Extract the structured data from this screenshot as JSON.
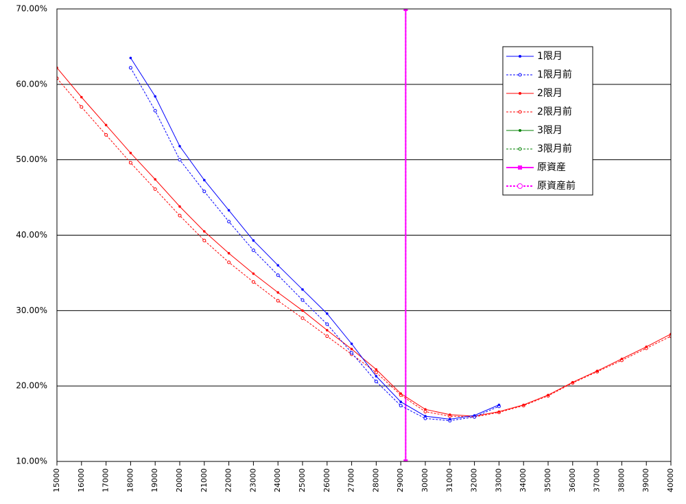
{
  "chart_data": {
    "type": "line",
    "xlim": [
      15000,
      40000
    ],
    "xticks": [
      15000,
      16000,
      17000,
      18000,
      19000,
      20000,
      21000,
      22000,
      23000,
      24000,
      25000,
      26000,
      27000,
      28000,
      29000,
      30000,
      31000,
      32000,
      33000,
      34000,
      35000,
      36000,
      37000,
      38000,
      39000,
      40000
    ],
    "ylim": [
      10,
      70
    ],
    "yticks": [
      {
        "value": 10,
        "label": "10.00%"
      },
      {
        "value": 20,
        "label": "20.00%"
      },
      {
        "value": 30,
        "label": "30.00%"
      },
      {
        "value": 40,
        "label": "40.00%"
      },
      {
        "value": 50,
        "label": "50.00%"
      },
      {
        "value": 60,
        "label": "60.00%"
      },
      {
        "value": 70,
        "label": "70.00%"
      }
    ],
    "grid": true,
    "legend": "top-right",
    "series": [
      {
        "name": "1限月",
        "color": "#0000ff",
        "dash": false,
        "marker": "filled",
        "x": [
          18000,
          19000,
          20000,
          21000,
          22000,
          23000,
          24000,
          25000,
          26000,
          27000,
          28000,
          29000,
          30000,
          31000,
          32000,
          33000
        ],
        "values": [
          63.5,
          58.4,
          51.8,
          47.3,
          43.3,
          39.3,
          36.0,
          32.8,
          29.6,
          25.6,
          21.3,
          17.9,
          16.0,
          15.6,
          16.1,
          17.5
        ]
      },
      {
        "name": "1限月前",
        "color": "#0000ff",
        "dash": true,
        "marker": "open",
        "x": [
          18000,
          19000,
          20000,
          21000,
          22000,
          23000,
          24000,
          25000,
          26000,
          27000,
          28000,
          29000,
          30000,
          31000,
          32000,
          33000
        ],
        "values": [
          62.2,
          56.5,
          50.0,
          45.8,
          41.8,
          38.0,
          34.7,
          31.4,
          28.2,
          24.4,
          20.6,
          17.4,
          15.7,
          15.4,
          15.9,
          17.3
        ]
      },
      {
        "name": "2限月",
        "color": "#ff0000",
        "dash": false,
        "marker": "filled",
        "x": [
          15000,
          16000,
          17000,
          18000,
          19000,
          20000,
          21000,
          22000,
          23000,
          24000,
          25000,
          26000,
          27000,
          28000,
          29000,
          30000,
          31000,
          32000,
          33000,
          34000,
          35000,
          36000,
          37000,
          38000,
          39000,
          40000
        ],
        "values": [
          62.2,
          58.3,
          54.6,
          50.9,
          47.4,
          43.8,
          40.5,
          37.6,
          34.9,
          32.4,
          30.0,
          27.4,
          24.9,
          22.2,
          19.0,
          16.9,
          16.2,
          16.0,
          16.6,
          17.5,
          18.8,
          20.5,
          22.0,
          23.6,
          25.2,
          26.9
        ]
      },
      {
        "name": "2限月前",
        "color": "#ff0000",
        "dash": true,
        "marker": "open",
        "x": [
          15000,
          16000,
          17000,
          18000,
          19000,
          20000,
          21000,
          22000,
          23000,
          24000,
          25000,
          26000,
          27000,
          28000,
          29000,
          30000,
          31000,
          32000,
          33000,
          34000,
          35000,
          36000,
          37000,
          38000,
          39000,
          40000
        ],
        "values": [
          60.8,
          57.0,
          53.3,
          49.6,
          46.1,
          42.6,
          39.3,
          36.4,
          33.8,
          31.3,
          29.0,
          26.6,
          24.2,
          21.8,
          18.8,
          16.6,
          16.0,
          15.9,
          16.5,
          17.4,
          18.7,
          20.4,
          21.9,
          23.4,
          25.0,
          26.6
        ]
      },
      {
        "name": "3限月",
        "color": "#008000",
        "dash": false,
        "marker": "filled",
        "x": [],
        "values": []
      },
      {
        "name": "3限月前",
        "color": "#008000",
        "dash": true,
        "marker": "open",
        "x": [],
        "values": []
      },
      {
        "name": "原資産",
        "color": "#ff00ff",
        "dash": false,
        "marker": "square",
        "x": [
          29200,
          29200
        ],
        "values": [
          10,
          70
        ]
      },
      {
        "name": "原資産前",
        "color": "#ff00ff",
        "dash": true,
        "marker": "open",
        "x": [
          29200,
          29200
        ],
        "values": [
          10,
          70
        ]
      }
    ]
  }
}
